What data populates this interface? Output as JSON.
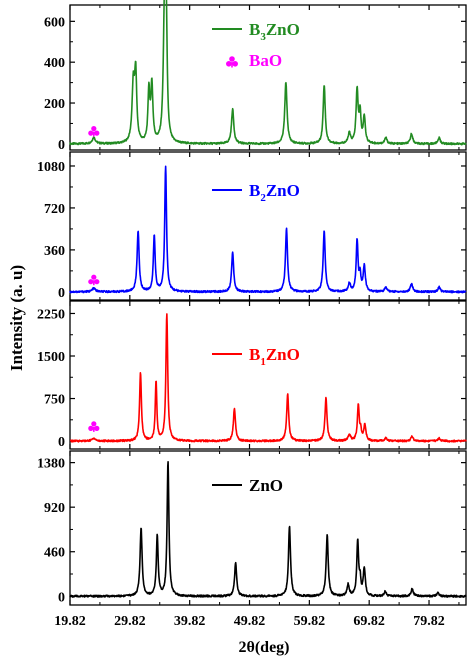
{
  "figure": {
    "ylabel": "Intensity (a. u)",
    "xlabel": "2θ(deg)",
    "x_ticks": [
      "19.82",
      "29.82",
      "39.82",
      "49.82",
      "59.82",
      "69.82",
      "79.82"
    ]
  },
  "chart_data": [
    {
      "type": "line",
      "panel": "top",
      "legend_label": "B3ZnO",
      "legend_main": "B",
      "legend_sub": "3",
      "legend_suffix": "ZnO",
      "color": "#228B22",
      "xlim": [
        19.82,
        86.0
      ],
      "ylim": [
        -30,
        680
      ],
      "y_ticks": [
        0,
        200,
        400,
        600
      ],
      "y_tick_labels": [
        "0",
        "200",
        "400",
        "600"
      ],
      "marker_label": "BaO",
      "marker_color": "#FF00FF",
      "marker_positions": [
        {
          "x": 23.8,
          "y": 60
        }
      ],
      "baseline": 0,
      "peaks": [
        [
          23.8,
          30,
          0.7
        ],
        [
          30.4,
          280,
          0.55
        ],
        [
          30.8,
          320,
          0.45
        ],
        [
          33.0,
          250,
          0.4
        ],
        [
          33.5,
          280,
          0.45
        ],
        [
          35.6,
          600,
          0.5
        ],
        [
          35.9,
          560,
          0.4
        ],
        [
          47.0,
          170,
          0.5
        ],
        [
          55.9,
          300,
          0.5
        ],
        [
          62.3,
          290,
          0.45
        ],
        [
          66.5,
          50,
          0.5
        ],
        [
          67.8,
          260,
          0.45
        ],
        [
          68.3,
          140,
          0.4
        ],
        [
          69.0,
          130,
          0.45
        ],
        [
          72.6,
          30,
          0.5
        ],
        [
          76.9,
          50,
          0.5
        ],
        [
          81.5,
          30,
          0.5
        ]
      ]
    },
    {
      "type": "line",
      "panel": "second",
      "legend_label": "B2ZnO",
      "legend_main": "B",
      "legend_sub": "2",
      "legend_suffix": "ZnO",
      "color": "#0000FF",
      "xlim": [
        19.82,
        86.0
      ],
      "ylim": [
        -70,
        1200
      ],
      "y_ticks": [
        0,
        360,
        720,
        1080
      ],
      "y_tick_labels": [
        "0",
        "360",
        "720",
        "1080"
      ],
      "marker_color": "#FF00FF",
      "marker_positions": [
        {
          "x": 23.8,
          "y": 100
        }
      ],
      "baseline": 0,
      "peaks": [
        [
          23.8,
          30,
          0.7
        ],
        [
          31.2,
          520,
          0.45
        ],
        [
          33.9,
          480,
          0.4
        ],
        [
          35.8,
          1080,
          0.4
        ],
        [
          47.0,
          340,
          0.45
        ],
        [
          56.0,
          540,
          0.45
        ],
        [
          62.3,
          520,
          0.45
        ],
        [
          66.5,
          70,
          0.5
        ],
        [
          67.8,
          440,
          0.4
        ],
        [
          68.3,
          140,
          0.35
        ],
        [
          69.0,
          220,
          0.45
        ],
        [
          72.6,
          40,
          0.5
        ],
        [
          76.9,
          70,
          0.5
        ],
        [
          81.5,
          40,
          0.5
        ]
      ]
    },
    {
      "type": "line",
      "panel": "third",
      "legend_label": "B1ZnO",
      "legend_main": "B",
      "legend_sub": "1",
      "legend_suffix": "ZnO",
      "color": "#FF0000",
      "xlim": [
        19.82,
        86.0
      ],
      "ylim": [
        -140,
        2470
      ],
      "y_ticks": [
        0,
        750,
        1500,
        2250
      ],
      "y_tick_labels": [
        "0",
        "750",
        "1500",
        "2250"
      ],
      "marker_color": "#FF00FF",
      "marker_positions": [
        {
          "x": 23.8,
          "y": 250
        }
      ],
      "baseline": 0,
      "peaks": [
        [
          23.8,
          50,
          0.7
        ],
        [
          31.6,
          1200,
          0.4
        ],
        [
          34.2,
          1050,
          0.35
        ],
        [
          36.0,
          2250,
          0.4
        ],
        [
          47.3,
          580,
          0.45
        ],
        [
          56.2,
          820,
          0.45
        ],
        [
          62.6,
          760,
          0.45
        ],
        [
          66.5,
          120,
          0.5
        ],
        [
          68.0,
          620,
          0.4
        ],
        [
          68.4,
          180,
          0.35
        ],
        [
          69.1,
          280,
          0.45
        ],
        [
          72.6,
          50,
          0.5
        ],
        [
          77.0,
          80,
          0.5
        ],
        [
          81.5,
          50,
          0.5
        ]
      ]
    },
    {
      "type": "line",
      "panel": "bottom",
      "legend_label": "ZnO",
      "legend_main": "ZnO",
      "legend_sub": "",
      "legend_suffix": "",
      "color": "#000000",
      "xlim": [
        19.82,
        86.0
      ],
      "ylim": [
        -90,
        1500
      ],
      "y_ticks": [
        0,
        460,
        920,
        1380
      ],
      "y_tick_labels": [
        "0",
        "460",
        "920",
        "1380"
      ],
      "baseline": 0,
      "peaks": [
        [
          31.7,
          700,
          0.45
        ],
        [
          34.4,
          620,
          0.4
        ],
        [
          36.2,
          1390,
          0.4
        ],
        [
          47.5,
          350,
          0.45
        ],
        [
          56.5,
          720,
          0.45
        ],
        [
          62.8,
          630,
          0.45
        ],
        [
          66.3,
          120,
          0.5
        ],
        [
          67.9,
          570,
          0.4
        ],
        [
          68.3,
          150,
          0.35
        ],
        [
          69.0,
          280,
          0.45
        ],
        [
          72.5,
          50,
          0.5
        ],
        [
          77.0,
          80,
          0.5
        ],
        [
          81.3,
          40,
          0.5
        ]
      ]
    }
  ]
}
